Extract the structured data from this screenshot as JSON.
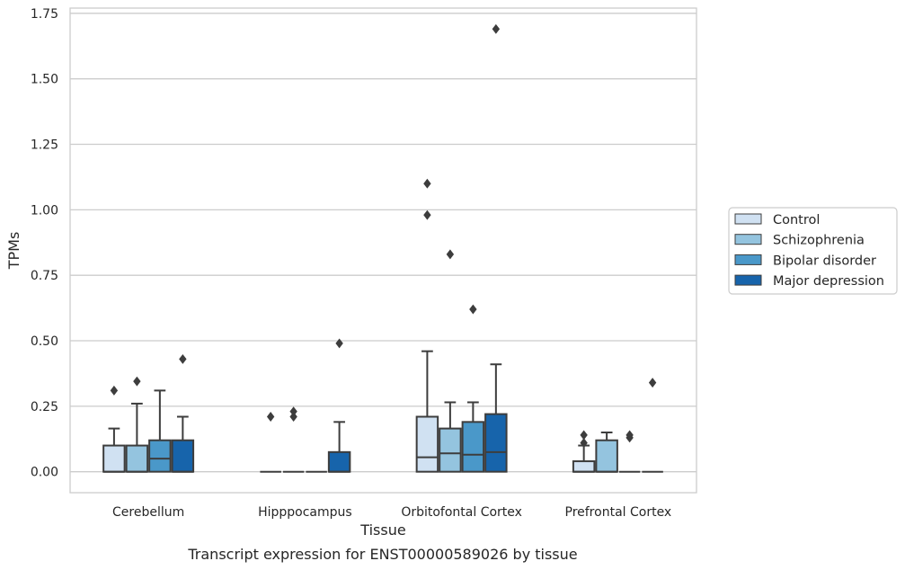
{
  "caption": "Transcript expression for ENST00000589026 by tissue",
  "chart_data": {
    "type": "box",
    "title": "",
    "xlabel": "Tissue",
    "ylabel": "TPMs",
    "ylim": [
      -0.08,
      1.77
    ],
    "yticks": [
      0.0,
      0.25,
      0.5,
      0.75,
      1.0,
      1.25,
      1.5,
      1.75
    ],
    "ytick_labels": [
      "0.00",
      "0.25",
      "0.50",
      "0.75",
      "1.00",
      "1.25",
      "1.50",
      "1.75"
    ],
    "grid": "horizontal",
    "legend_placement": "center-right-outside",
    "categories": [
      "Cerebellum",
      "Hipppocampus",
      "Orbitofontal Cortex",
      "Prefrontal Cortex"
    ],
    "series": [
      {
        "name": "Control",
        "color": "#d0e1f2",
        "boxes": [
          {
            "q1": 0.0,
            "median": 0.0,
            "q3": 0.1,
            "whisker_low": 0.0,
            "whisker_high": 0.165,
            "outliers": [
              0.31
            ]
          },
          {
            "q1": 0.0,
            "median": 0.0,
            "q3": 0.0,
            "whisker_low": 0.0,
            "whisker_high": 0.0,
            "outliers": [
              0.21
            ]
          },
          {
            "q1": 0.0,
            "median": 0.055,
            "q3": 0.21,
            "whisker_low": 0.0,
            "whisker_high": 0.46,
            "outliers": [
              0.98,
              1.1
            ]
          },
          {
            "q1": 0.0,
            "median": 0.0,
            "q3": 0.04,
            "whisker_low": 0.0,
            "whisker_high": 0.1,
            "outliers": [
              0.11,
              0.14
            ]
          }
        ]
      },
      {
        "name": "Schizophrenia",
        "color": "#94c4df",
        "boxes": [
          {
            "q1": 0.0,
            "median": 0.0,
            "q3": 0.1,
            "whisker_low": 0.0,
            "whisker_high": 0.26,
            "outliers": [
              0.345
            ]
          },
          {
            "q1": 0.0,
            "median": 0.0,
            "q3": 0.0,
            "whisker_low": 0.0,
            "whisker_high": 0.0,
            "outliers": [
              0.21,
              0.23
            ]
          },
          {
            "q1": 0.0,
            "median": 0.07,
            "q3": 0.165,
            "whisker_low": 0.0,
            "whisker_high": 0.265,
            "outliers": [
              0.83
            ]
          },
          {
            "q1": 0.0,
            "median": 0.0,
            "q3": 0.12,
            "whisker_low": 0.0,
            "whisker_high": 0.15,
            "outliers": []
          }
        ]
      },
      {
        "name": "Bipolar disorder",
        "color": "#4a98c9",
        "boxes": [
          {
            "q1": 0.0,
            "median": 0.05,
            "q3": 0.12,
            "whisker_low": 0.0,
            "whisker_high": 0.31,
            "outliers": []
          },
          {
            "q1": 0.0,
            "median": 0.0,
            "q3": 0.0,
            "whisker_low": 0.0,
            "whisker_high": 0.0,
            "outliers": []
          },
          {
            "q1": 0.0,
            "median": 0.065,
            "q3": 0.19,
            "whisker_low": 0.0,
            "whisker_high": 0.265,
            "outliers": [
              0.62
            ]
          },
          {
            "q1": 0.0,
            "median": 0.0,
            "q3": 0.0,
            "whisker_low": 0.0,
            "whisker_high": 0.0,
            "outliers": [
              0.13,
              0.14
            ]
          }
        ]
      },
      {
        "name": "Major depression",
        "color": "#1764ab",
        "boxes": [
          {
            "q1": 0.0,
            "median": 0.0,
            "q3": 0.12,
            "whisker_low": 0.0,
            "whisker_high": 0.21,
            "outliers": [
              0.43
            ]
          },
          {
            "q1": 0.0,
            "median": 0.0,
            "q3": 0.075,
            "whisker_low": 0.0,
            "whisker_high": 0.19,
            "outliers": [
              0.49
            ]
          },
          {
            "q1": 0.0,
            "median": 0.075,
            "q3": 0.22,
            "whisker_low": 0.0,
            "whisker_high": 0.41,
            "outliers": [
              1.69
            ]
          },
          {
            "q1": 0.0,
            "median": 0.0,
            "q3": 0.0,
            "whisker_low": 0.0,
            "whisker_high": 0.0,
            "outliers": [
              0.34
            ]
          }
        ]
      }
    ]
  }
}
